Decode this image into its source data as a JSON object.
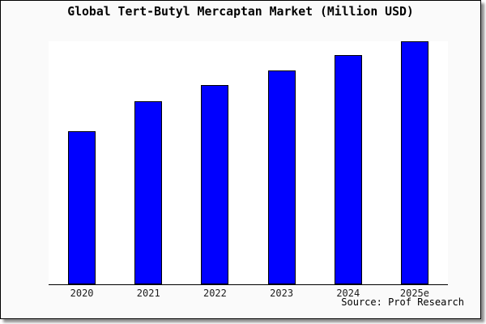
{
  "header": {
    "title": "Global Tert-Butyl Mercaptan Market (Million USD)"
  },
  "footer": {
    "source_label": "Source: Prof Research"
  },
  "colors": {
    "card_background": "#fafafa",
    "plot_background": "#ffffff",
    "bar_fill": "#0000ff",
    "bar_edge": "#000000",
    "border": "#000000",
    "shadow": "#8f8f8f"
  },
  "chart_data": {
    "type": "bar",
    "title": "Global Tert-Butyl Mercaptan Market (Million USD)",
    "categories": [
      "2020",
      "2021",
      "2022",
      "2023",
      "2024",
      "2025e"
    ],
    "values": [
      63.0,
      75.3,
      82.0,
      88.0,
      94.3,
      100.0
    ],
    "value_scale_note": "no y-axis or gridlines shown; values are percent of tallest bar (2025e = 100)",
    "xlabel": "",
    "ylabel": "",
    "ylim": [
      0,
      100
    ],
    "grid": false,
    "legend": null,
    "y_axis_visible": false,
    "x_axis_line": true,
    "bar_color": "#0000ff",
    "bar_edge_color": "#000000",
    "source_note": "Source: Prof Research"
  }
}
